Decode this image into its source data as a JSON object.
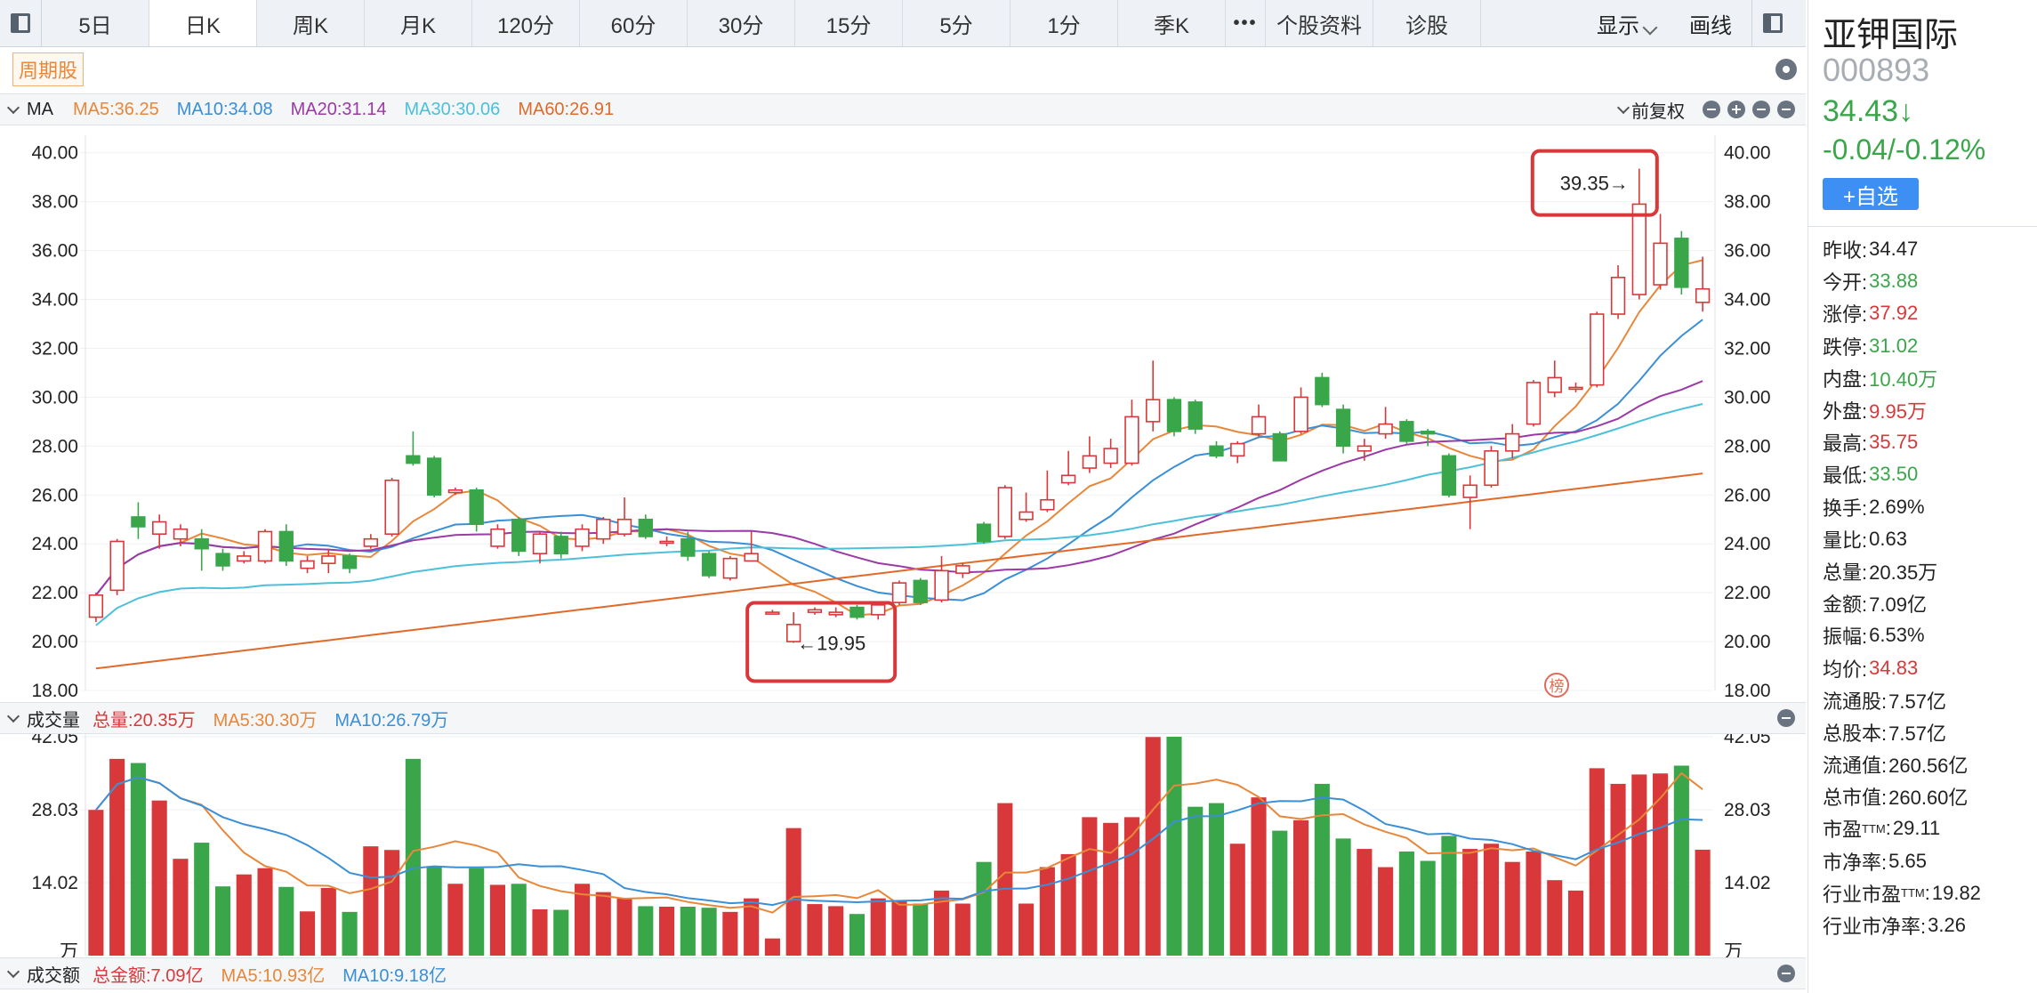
{
  "toolbar": {
    "tabs": [
      "5日",
      "日K",
      "周K",
      "月K",
      "120分",
      "60分",
      "30分",
      "15分",
      "5分",
      "1分",
      "季K"
    ],
    "active_tab": "日K",
    "more_label": "•••",
    "extra": [
      "个股资料",
      "诊股"
    ],
    "display_label": "显示",
    "draw_label": "画线"
  },
  "cycle_tag": "周期股",
  "ma_band": {
    "label": "MA",
    "items": [
      {
        "text": "MA5:36.25",
        "color": "#e8873a"
      },
      {
        "text": "MA10:34.08",
        "color": "#3a8fd6"
      },
      {
        "text": "MA20:31.14",
        "color": "#9b3aa6"
      },
      {
        "text": "MA30:30.06",
        "color": "#4cc0d9"
      },
      {
        "text": "MA60:26.91",
        "color": "#e06a2a"
      }
    ],
    "adjust_label": "前复权"
  },
  "price_axis": {
    "ticks": [
      "40.00",
      "38.00",
      "36.00",
      "34.00",
      "32.00",
      "30.00",
      "28.00",
      "26.00",
      "24.00",
      "22.00",
      "20.00",
      "18.00"
    ]
  },
  "annotations": {
    "high": "39.35→",
    "low": "←19.95",
    "badge": "榜"
  },
  "volume_band": {
    "label": "成交量",
    "items": [
      {
        "text": "总量:20.35万",
        "color": "#d9383a"
      },
      {
        "text": "MA5:30.30万",
        "color": "#e8873a"
      },
      {
        "text": "MA10:26.79万",
        "color": "#3a8fd6"
      }
    ]
  },
  "volume_axis": {
    "ticks": [
      "42.05",
      "28.03",
      "14.02"
    ],
    "unit": "万"
  },
  "amount_band": {
    "label": "成交额",
    "items": [
      {
        "text": "总金额:7.09亿",
        "color": "#d9383a"
      },
      {
        "text": "MA5:10.93亿",
        "color": "#e8873a"
      },
      {
        "text": "MA10:9.18亿",
        "color": "#3a8fd6"
      }
    ]
  },
  "chart_data": {
    "type": "candlestick",
    "price_range": [
      18,
      40.5
    ],
    "volume_range": [
      0,
      42.05
    ],
    "candles": [
      {
        "o": 21.0,
        "c": 21.9,
        "h": 22.0,
        "l": 20.8,
        "v": 28.0
      },
      {
        "o": 22.1,
        "c": 24.1,
        "h": 24.2,
        "l": 21.9,
        "v": 37.8
      },
      {
        "o": 25.1,
        "c": 24.7,
        "h": 25.7,
        "l": 24.2,
        "v": 37.0
      },
      {
        "o": 24.4,
        "c": 24.9,
        "h": 25.2,
        "l": 23.8,
        "v": 29.8
      },
      {
        "o": 24.2,
        "c": 24.6,
        "h": 24.8,
        "l": 23.9,
        "v": 18.6
      },
      {
        "o": 24.2,
        "c": 23.8,
        "h": 24.6,
        "l": 22.9,
        "v": 21.7
      },
      {
        "o": 23.6,
        "c": 23.1,
        "h": 23.8,
        "l": 22.9,
        "v": 13.3
      },
      {
        "o": 23.3,
        "c": 23.5,
        "h": 23.7,
        "l": 23.2,
        "v": 15.6
      },
      {
        "o": 23.3,
        "c": 24.5,
        "h": 24.6,
        "l": 23.2,
        "v": 16.8
      },
      {
        "o": 24.5,
        "c": 23.3,
        "h": 24.8,
        "l": 23.1,
        "v": 13.2
      },
      {
        "o": 23.0,
        "c": 23.3,
        "h": 23.5,
        "l": 22.8,
        "v": 8.5
      },
      {
        "o": 23.2,
        "c": 23.5,
        "h": 23.8,
        "l": 22.8,
        "v": 13.0
      },
      {
        "o": 23.5,
        "c": 23.0,
        "h": 23.6,
        "l": 22.8,
        "v": 8.4
      },
      {
        "o": 23.9,
        "c": 24.2,
        "h": 24.4,
        "l": 23.8,
        "v": 21.0
      },
      {
        "o": 24.4,
        "c": 26.6,
        "h": 26.7,
        "l": 24.3,
        "v": 20.3
      },
      {
        "o": 27.6,
        "c": 27.3,
        "h": 28.6,
        "l": 27.2,
        "v": 37.8
      },
      {
        "o": 27.5,
        "c": 26.0,
        "h": 27.6,
        "l": 25.9,
        "v": 17.0
      },
      {
        "o": 26.1,
        "c": 26.2,
        "h": 26.3,
        "l": 26.0,
        "v": 13.8
      },
      {
        "o": 26.2,
        "c": 24.8,
        "h": 26.3,
        "l": 24.5,
        "v": 16.8
      },
      {
        "o": 23.9,
        "c": 24.6,
        "h": 24.8,
        "l": 23.8,
        "v": 13.6
      },
      {
        "o": 25.0,
        "c": 23.7,
        "h": 25.1,
        "l": 23.5,
        "v": 13.8
      },
      {
        "o": 23.6,
        "c": 24.4,
        "h": 24.5,
        "l": 23.2,
        "v": 8.9
      },
      {
        "o": 24.3,
        "c": 23.6,
        "h": 24.5,
        "l": 23.4,
        "v": 8.8
      },
      {
        "o": 23.9,
        "c": 24.6,
        "h": 24.8,
        "l": 23.7,
        "v": 13.8
      },
      {
        "o": 24.2,
        "c": 25.0,
        "h": 25.1,
        "l": 24.0,
        "v": 12.2
      },
      {
        "o": 24.4,
        "c": 25.0,
        "h": 25.9,
        "l": 24.3,
        "v": 11.0
      },
      {
        "o": 25.0,
        "c": 24.3,
        "h": 25.2,
        "l": 24.2,
        "v": 9.5
      },
      {
        "o": 24.1,
        "c": 24.1,
        "h": 24.3,
        "l": 23.9,
        "v": 9.4
      },
      {
        "o": 24.2,
        "c": 23.5,
        "h": 24.5,
        "l": 23.3,
        "v": 9.4
      },
      {
        "o": 23.6,
        "c": 22.7,
        "h": 23.7,
        "l": 22.6,
        "v": 9.2
      },
      {
        "o": 22.6,
        "c": 23.4,
        "h": 23.5,
        "l": 22.5,
        "v": 8.4
      },
      {
        "o": 23.3,
        "c": 23.6,
        "h": 24.5,
        "l": 23.3,
        "v": 11.0
      },
      {
        "o": 21.2,
        "c": 21.2,
        "h": 21.3,
        "l": 21.1,
        "v": 3.3
      },
      {
        "o": 20.0,
        "c": 20.7,
        "h": 21.2,
        "l": 19.95,
        "v": 24.5
      },
      {
        "o": 21.2,
        "c": 21.3,
        "h": 21.4,
        "l": 21.1,
        "v": 9.9
      },
      {
        "o": 21.1,
        "c": 21.2,
        "h": 21.4,
        "l": 21.0,
        "v": 9.5
      },
      {
        "o": 21.4,
        "c": 21.0,
        "h": 21.5,
        "l": 20.9,
        "v": 8.0
      },
      {
        "o": 21.1,
        "c": 21.5,
        "h": 21.6,
        "l": 20.9,
        "v": 11.0
      },
      {
        "o": 21.6,
        "c": 22.4,
        "h": 22.5,
        "l": 21.5,
        "v": 10.5
      },
      {
        "o": 22.5,
        "c": 21.6,
        "h": 22.6,
        "l": 21.5,
        "v": 10.0
      },
      {
        "o": 21.7,
        "c": 22.9,
        "h": 23.5,
        "l": 21.6,
        "v": 12.5
      },
      {
        "o": 22.8,
        "c": 23.1,
        "h": 23.2,
        "l": 22.6,
        "v": 10.0
      },
      {
        "o": 24.8,
        "c": 24.1,
        "h": 24.9,
        "l": 24.0,
        "v": 18.0
      },
      {
        "o": 24.3,
        "c": 26.3,
        "h": 26.4,
        "l": 24.2,
        "v": 29.3
      },
      {
        "o": 25.0,
        "c": 25.3,
        "h": 26.1,
        "l": 24.9,
        "v": 10.0
      },
      {
        "o": 25.4,
        "c": 25.8,
        "h": 27.0,
        "l": 25.3,
        "v": 17.0
      },
      {
        "o": 26.5,
        "c": 26.8,
        "h": 27.8,
        "l": 26.4,
        "v": 19.5
      },
      {
        "o": 27.1,
        "c": 27.6,
        "h": 28.4,
        "l": 26.9,
        "v": 26.6
      },
      {
        "o": 27.3,
        "c": 27.9,
        "h": 28.3,
        "l": 27.1,
        "v": 25.5
      },
      {
        "o": 27.3,
        "c": 29.2,
        "h": 29.9,
        "l": 27.2,
        "v": 26.6
      },
      {
        "o": 29.0,
        "c": 29.9,
        "h": 31.5,
        "l": 28.6,
        "v": 42.0
      },
      {
        "o": 29.9,
        "c": 28.6,
        "h": 30.0,
        "l": 28.4,
        "v": 42.6
      },
      {
        "o": 29.8,
        "c": 28.7,
        "h": 29.9,
        "l": 28.5,
        "v": 28.6
      },
      {
        "o": 28.0,
        "c": 27.6,
        "h": 28.2,
        "l": 27.5,
        "v": 29.3
      },
      {
        "o": 27.6,
        "c": 28.1,
        "h": 28.2,
        "l": 27.3,
        "v": 21.5
      },
      {
        "o": 28.5,
        "c": 29.2,
        "h": 29.7,
        "l": 28.4,
        "v": 30.4
      },
      {
        "o": 28.5,
        "c": 27.4,
        "h": 28.6,
        "l": 27.4,
        "v": 24.0
      },
      {
        "o": 28.6,
        "c": 30.0,
        "h": 30.4,
        "l": 28.5,
        "v": 26.0
      },
      {
        "o": 30.8,
        "c": 29.7,
        "h": 31.0,
        "l": 29.6,
        "v": 33.0
      },
      {
        "o": 29.5,
        "c": 28.0,
        "h": 29.7,
        "l": 27.7,
        "v": 22.5
      },
      {
        "o": 27.8,
        "c": 28.0,
        "h": 28.3,
        "l": 27.4,
        "v": 20.5
      },
      {
        "o": 28.5,
        "c": 28.9,
        "h": 29.6,
        "l": 28.3,
        "v": 17.0
      },
      {
        "o": 29.0,
        "c": 28.2,
        "h": 29.1,
        "l": 28.1,
        "v": 20.0
      },
      {
        "o": 28.6,
        "c": 28.5,
        "h": 28.7,
        "l": 28.0,
        "v": 18.2
      },
      {
        "o": 27.6,
        "c": 26.0,
        "h": 27.7,
        "l": 25.9,
        "v": 23.0
      },
      {
        "o": 25.9,
        "c": 26.4,
        "h": 26.8,
        "l": 24.6,
        "v": 20.5
      },
      {
        "o": 26.4,
        "c": 27.8,
        "h": 28.0,
        "l": 26.3,
        "v": 21.5
      },
      {
        "o": 27.8,
        "c": 28.5,
        "h": 28.9,
        "l": 27.5,
        "v": 18.0
      },
      {
        "o": 28.9,
        "c": 30.6,
        "h": 30.7,
        "l": 28.8,
        "v": 20.0
      },
      {
        "o": 30.2,
        "c": 30.8,
        "h": 31.5,
        "l": 30.0,
        "v": 14.5
      },
      {
        "o": 30.4,
        "c": 30.4,
        "h": 30.6,
        "l": 30.2,
        "v": 12.5
      },
      {
        "o": 30.5,
        "c": 33.4,
        "h": 33.5,
        "l": 30.4,
        "v": 36.0
      },
      {
        "o": 33.4,
        "c": 34.9,
        "h": 35.4,
        "l": 33.2,
        "v": 33.0
      },
      {
        "o": 34.2,
        "c": 37.9,
        "h": 39.35,
        "l": 34.0,
        "v": 34.8
      },
      {
        "o": 34.6,
        "c": 36.3,
        "h": 37.5,
        "l": 34.4,
        "v": 35.0
      },
      {
        "o": 36.5,
        "c": 34.5,
        "h": 36.8,
        "l": 34.2,
        "v": 36.5
      },
      {
        "o": 33.88,
        "c": 34.43,
        "h": 35.75,
        "l": 33.5,
        "v": 20.35
      }
    ],
    "ma_labels": [
      "MA5",
      "MA10",
      "MA20",
      "MA30",
      "MA60"
    ]
  },
  "quote": {
    "name": "亚钾国际",
    "code": "000893",
    "price": "34.43↓",
    "change": "-0.04/-0.12%",
    "add_label": "+自选"
  },
  "stats": [
    {
      "k": "昨收:",
      "v": "34.47",
      "c": "black"
    },
    {
      "k": "今开:",
      "v": "33.88",
      "c": "green"
    },
    {
      "k": "涨停:",
      "v": "37.92",
      "c": "red"
    },
    {
      "k": "跌停:",
      "v": "31.02",
      "c": "green"
    },
    {
      "k": "内盘:",
      "v": "10.40万",
      "c": "green"
    },
    {
      "k": "外盘:",
      "v": "9.95万",
      "c": "red"
    },
    {
      "k": "最高:",
      "v": "35.75",
      "c": "red"
    },
    {
      "k": "最低:",
      "v": "33.50",
      "c": "green"
    },
    {
      "k": "换手:",
      "v": "2.69%",
      "c": "black"
    },
    {
      "k": "量比:",
      "v": "0.63",
      "c": "black"
    },
    {
      "k": "总量:",
      "v": "20.35万",
      "c": "black"
    },
    {
      "k": "金额:",
      "v": "7.09亿",
      "c": "black"
    },
    {
      "k": "振幅:",
      "v": "6.53%",
      "c": "black"
    },
    {
      "k": "均价:",
      "v": "34.83",
      "c": "red"
    },
    {
      "k": "流通股:",
      "v": "7.57亿",
      "c": "black"
    },
    {
      "k": "总股本:",
      "v": "7.57亿",
      "c": "black"
    },
    {
      "k": "流通值:",
      "v": "260.56亿",
      "c": "black"
    },
    {
      "k": "总市值:",
      "v": "260.60亿",
      "c": "black"
    },
    {
      "k": "市盈",
      "sup": "TTM",
      "k2": ":",
      "v": "29.11",
      "c": "black"
    },
    {
      "k": "市净率:",
      "v": "5.65",
      "c": "black"
    },
    {
      "k": "行业市盈",
      "sup": "TTM",
      "k2": ":",
      "v": "19.82",
      "c": "black"
    },
    {
      "k": "行业市净率:",
      "v": "3.26",
      "c": "black"
    }
  ]
}
